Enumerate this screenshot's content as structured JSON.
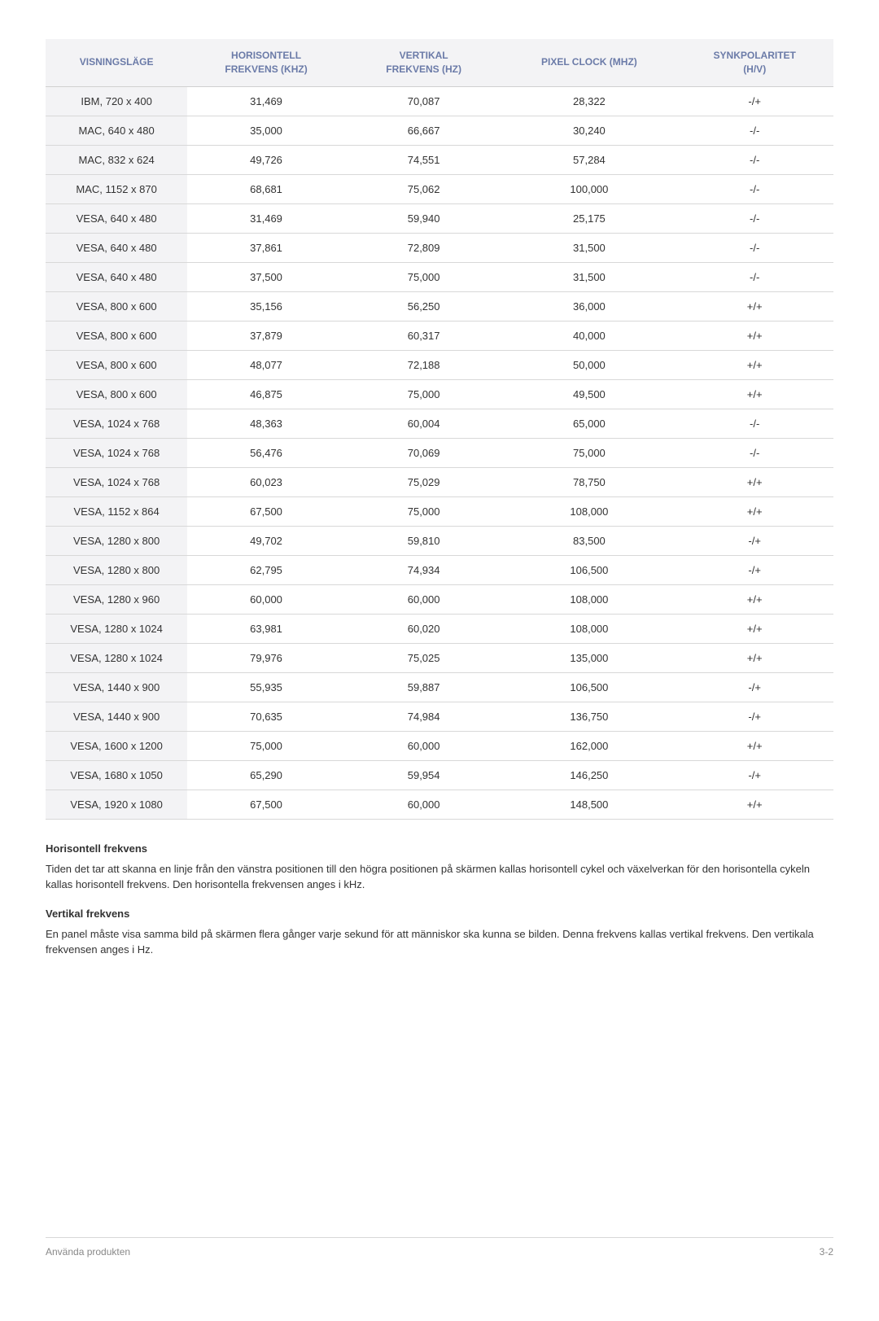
{
  "table": {
    "headers": {
      "mode": "VISNINGSLÄGE",
      "hfreq": "HORISONTELL\nFREKVENS (KHZ)",
      "vfreq": "VERTIKAL\nFREKVENS (HZ)",
      "pixel": "PIXEL CLOCK (MHZ)",
      "sync": "SYNKPOLARITET\n(H/V)"
    },
    "rows": [
      {
        "mode": "IBM, 720 x 400",
        "hfreq": "31,469",
        "vfreq": "70,087",
        "pixel": "28,322",
        "sync": "-/+"
      },
      {
        "mode": "MAC, 640 x 480",
        "hfreq": "35,000",
        "vfreq": "66,667",
        "pixel": "30,240",
        "sync": "-/-"
      },
      {
        "mode": "MAC, 832 x 624",
        "hfreq": "49,726",
        "vfreq": "74,551",
        "pixel": "57,284",
        "sync": "-/-"
      },
      {
        "mode": "MAC, 1152 x 870",
        "hfreq": "68,681",
        "vfreq": "75,062",
        "pixel": "100,000",
        "sync": "-/-"
      },
      {
        "mode": "VESA, 640 x 480",
        "hfreq": "31,469",
        "vfreq": "59,940",
        "pixel": "25,175",
        "sync": "-/-"
      },
      {
        "mode": "VESA, 640 x 480",
        "hfreq": "37,861",
        "vfreq": "72,809",
        "pixel": "31,500",
        "sync": "-/-"
      },
      {
        "mode": "VESA, 640 x 480",
        "hfreq": "37,500",
        "vfreq": "75,000",
        "pixel": "31,500",
        "sync": "-/-"
      },
      {
        "mode": "VESA, 800 x 600",
        "hfreq": "35,156",
        "vfreq": "56,250",
        "pixel": "36,000",
        "sync": "+/+"
      },
      {
        "mode": "VESA, 800 x 600",
        "hfreq": "37,879",
        "vfreq": "60,317",
        "pixel": "40,000",
        "sync": "+/+"
      },
      {
        "mode": "VESA, 800 x 600",
        "hfreq": "48,077",
        "vfreq": "72,188",
        "pixel": "50,000",
        "sync": "+/+"
      },
      {
        "mode": "VESA, 800 x 600",
        "hfreq": "46,875",
        "vfreq": "75,000",
        "pixel": "49,500",
        "sync": "+/+"
      },
      {
        "mode": "VESA, 1024 x 768",
        "hfreq": "48,363",
        "vfreq": "60,004",
        "pixel": "65,000",
        "sync": "-/-"
      },
      {
        "mode": "VESA, 1024 x 768",
        "hfreq": "56,476",
        "vfreq": "70,069",
        "pixel": "75,000",
        "sync": "-/-"
      },
      {
        "mode": "VESA, 1024 x 768",
        "hfreq": "60,023",
        "vfreq": "75,029",
        "pixel": "78,750",
        "sync": "+/+"
      },
      {
        "mode": "VESA, 1152 x 864",
        "hfreq": "67,500",
        "vfreq": "75,000",
        "pixel": "108,000",
        "sync": "+/+"
      },
      {
        "mode": "VESA, 1280 x 800",
        "hfreq": "49,702",
        "vfreq": "59,810",
        "pixel": "83,500",
        "sync": "-/+"
      },
      {
        "mode": "VESA, 1280 x 800",
        "hfreq": "62,795",
        "vfreq": "74,934",
        "pixel": "106,500",
        "sync": "-/+"
      },
      {
        "mode": "VESA, 1280 x 960",
        "hfreq": "60,000",
        "vfreq": "60,000",
        "pixel": "108,000",
        "sync": "+/+"
      },
      {
        "mode": "VESA, 1280 x 1024",
        "hfreq": "63,981",
        "vfreq": "60,020",
        "pixel": "108,000",
        "sync": "+/+"
      },
      {
        "mode": "VESA, 1280 x 1024",
        "hfreq": "79,976",
        "vfreq": "75,025",
        "pixel": "135,000",
        "sync": "+/+"
      },
      {
        "mode": "VESA, 1440 x 900",
        "hfreq": "55,935",
        "vfreq": "59,887",
        "pixel": "106,500",
        "sync": "-/+"
      },
      {
        "mode": "VESA, 1440 x 900",
        "hfreq": "70,635",
        "vfreq": "74,984",
        "pixel": "136,750",
        "sync": "-/+"
      },
      {
        "mode": "VESA, 1600 x 1200",
        "hfreq": "75,000",
        "vfreq": "60,000",
        "pixel": "162,000",
        "sync": "+/+"
      },
      {
        "mode": "VESA, 1680 x 1050",
        "hfreq": "65,290",
        "vfreq": "59,954",
        "pixel": "146,250",
        "sync": "-/+"
      },
      {
        "mode": "VESA, 1920 x 1080",
        "hfreq": "67,500",
        "vfreq": "60,000",
        "pixel": "148,500",
        "sync": "+/+"
      }
    ]
  },
  "sections": {
    "horiz_heading": "Horisontell frekvens",
    "horiz_text": "Tiden det tar att skanna en linje från den vänstra positionen till den högra positionen på skärmen kallas horisontell cykel och växelverkan för den horisontella cykeln kallas horisontell frekvens. Den horisontella frekvensen anges i kHz.",
    "vert_heading": "Vertikal frekvens",
    "vert_text": "En panel måste visa samma bild på skärmen flera gånger varje sekund för att människor ska kunna se bilden. Denna frekvens kallas vertikal frekvens. Den vertikala frekvensen anges i Hz."
  },
  "footer": {
    "left": "Använda produkten",
    "right": "3-2"
  },
  "styling": {
    "header_bg": "#f3f3f5",
    "header_color": "#6b7ba8",
    "border_color": "#d8d8d8",
    "text_color": "#333333",
    "footer_color": "#888888",
    "body_bg": "#ffffff",
    "font_size_body": 13,
    "font_size_header": 12
  }
}
